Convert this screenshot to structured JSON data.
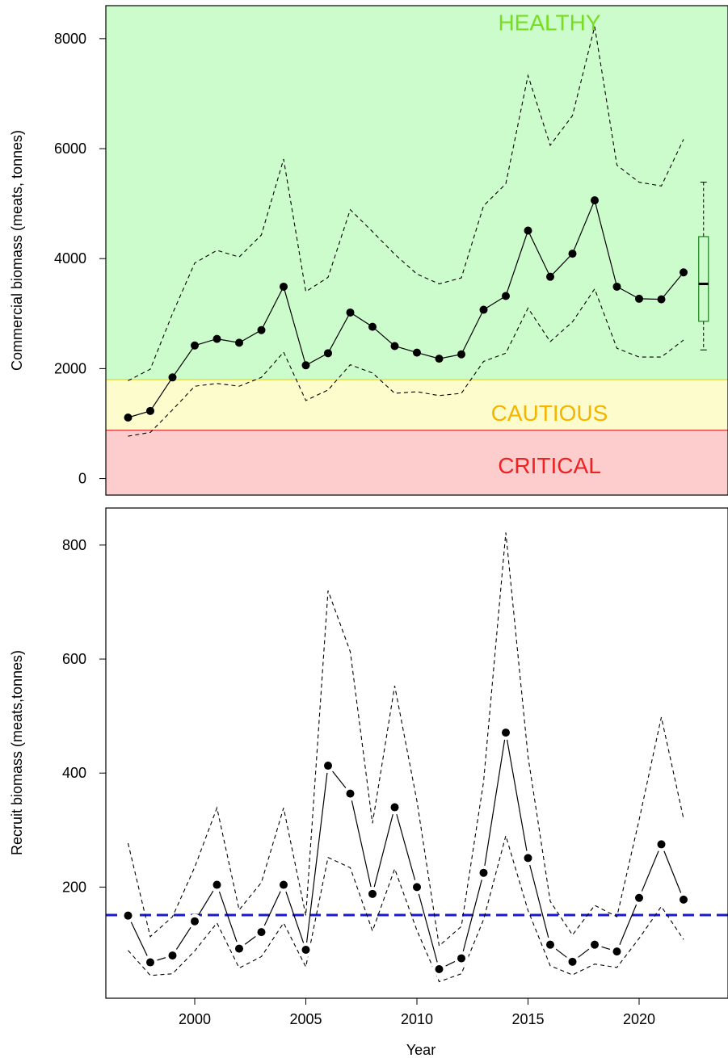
{
  "chart_data": [
    {
      "type": "line",
      "ylabel": "Commercial biomass (meats, tonnes)",
      "xlabel": "",
      "xlim": [
        1996,
        2024
      ],
      "ylim": [
        -300,
        8600
      ],
      "y_ticks": [
        "0",
        "2000",
        "4000",
        "6000",
        "8000"
      ],
      "x_ticks": [
        "2000",
        "2005",
        "2010",
        "2015",
        "2020"
      ],
      "zones": [
        {
          "label": "HEALTHY",
          "from": 1800,
          "to": 8600,
          "fill": "#ccfccc",
          "line": null,
          "label_color": "#77dd22",
          "label_y": 8150
        },
        {
          "label": "CAUTIOUS",
          "from": 880,
          "to": 1800,
          "fill": "#fdfccc",
          "line": "#e6d822",
          "label_color": "#f5b400",
          "label_y": 1050
        },
        {
          "label": "CRITICAL",
          "from": -300,
          "to": 880,
          "fill": "#fdcccc",
          "line": "#e83a3a",
          "label_color": "#ee2222",
          "label_y": 100
        }
      ],
      "x": [
        1997,
        1998,
        1999,
        2000,
        2001,
        2002,
        2003,
        2004,
        2005,
        2006,
        2007,
        2008,
        2009,
        2010,
        2011,
        2012,
        2013,
        2014,
        2015,
        2016,
        2017,
        2018,
        2019,
        2020,
        2021,
        2022
      ],
      "series": [
        {
          "role": "estimate",
          "values": [
            1110,
            1230,
            1840,
            2420,
            2540,
            2470,
            2700,
            3490,
            2060,
            2280,
            3020,
            2760,
            2410,
            2290,
            2180,
            2260,
            3070,
            3320,
            4510,
            3670,
            4090,
            5060,
            3490,
            3270,
            3260,
            3750
          ]
        },
        {
          "role": "upper",
          "values": [
            1780,
            1990,
            3000,
            3920,
            4150,
            4030,
            4430,
            5810,
            3400,
            3660,
            4890,
            4490,
            4080,
            3720,
            3540,
            3650,
            4960,
            5360,
            7330,
            6060,
            6600,
            8220,
            5700,
            5390,
            5320,
            6170
          ]
        },
        {
          "role": "lower",
          "values": [
            770,
            840,
            1250,
            1680,
            1730,
            1680,
            1840,
            2300,
            1420,
            1610,
            2070,
            1920,
            1550,
            1580,
            1510,
            1550,
            2130,
            2280,
            3100,
            2490,
            2850,
            3450,
            2370,
            2210,
            2210,
            2520
          ]
        }
      ],
      "boxplot": {
        "x": 2022.9,
        "min": 2340,
        "q1": 2860,
        "median": 3540,
        "q3": 4400,
        "max": 5390,
        "color": "#1a7f1a"
      }
    },
    {
      "type": "line",
      "ylabel": "Recruit biomass (meats,tonnes)",
      "xlabel": "Year",
      "xlim": [
        1996,
        2024
      ],
      "ylim": [
        5,
        865
      ],
      "y_ticks": [
        "200",
        "400",
        "600",
        "800"
      ],
      "x_ticks": [
        "2000",
        "2005",
        "2010",
        "2015",
        "2020"
      ],
      "reference_line": {
        "y": 151,
        "color": "#1a1acc"
      },
      "x": [
        1997,
        1998,
        1999,
        2000,
        2001,
        2002,
        2003,
        2004,
        2005,
        2006,
        2007,
        2008,
        2009,
        2010,
        2011,
        2012,
        2013,
        2014,
        2015,
        2016,
        2017,
        2018,
        2019,
        2020,
        2021,
        2022
      ],
      "series": [
        {
          "role": "estimate",
          "values": [
            150,
            68,
            80,
            140,
            204,
            92,
            121,
            204,
            90,
            413,
            364,
            188,
            340,
            200,
            56,
            75,
            225,
            471,
            251,
            99,
            69,
            99,
            87,
            181,
            275,
            178
          ]
        },
        {
          "role": "upper",
          "values": [
            277,
            113,
            148,
            235,
            339,
            160,
            208,
            339,
            150,
            720,
            613,
            312,
            553,
            351,
            97,
            131,
            385,
            822,
            429,
            175,
            116,
            168,
            148,
            318,
            498,
            320
          ]
        },
        {
          "role": "lower",
          "values": [
            89,
            45,
            48,
            88,
            137,
            58,
            78,
            137,
            60,
            252,
            234,
            123,
            232,
            124,
            34,
            48,
            143,
            290,
            159,
            62,
            46,
            65,
            59,
            110,
            166,
            108
          ]
        }
      ]
    }
  ]
}
